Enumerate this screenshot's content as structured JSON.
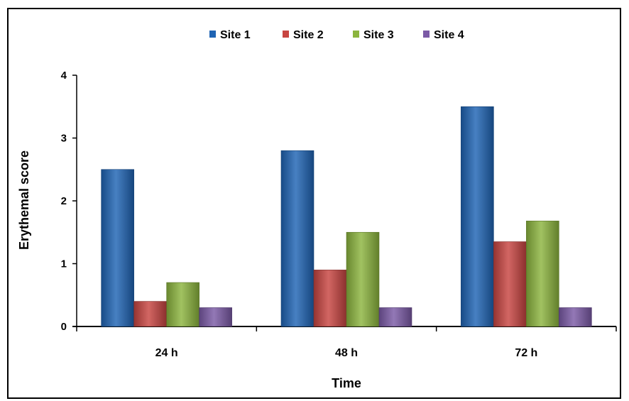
{
  "chart_data": {
    "type": "bar",
    "title": "",
    "xlabel": "Time",
    "ylabel": "Erythemal score",
    "categories": [
      "24 h",
      "48 h",
      "72 h"
    ],
    "series": [
      {
        "name": "Site 1",
        "values": [
          2.5,
          2.8,
          3.5
        ],
        "color": "#1f64b4"
      },
      {
        "name": "Site 2",
        "values": [
          0.4,
          0.9,
          1.35
        ],
        "color": "#c84541"
      },
      {
        "name": "Site 3",
        "values": [
          0.7,
          1.5,
          1.68
        ],
        "color": "#8cb53e"
      },
      {
        "name": "Site 4",
        "values": [
          0.3,
          0.3,
          0.3
        ],
        "color": "#7b5aa6"
      }
    ],
    "ylim": [
      0,
      4
    ],
    "yticks": [
      "0",
      "1",
      "2",
      "3",
      "4"
    ],
    "grid": false,
    "legend": "top"
  }
}
